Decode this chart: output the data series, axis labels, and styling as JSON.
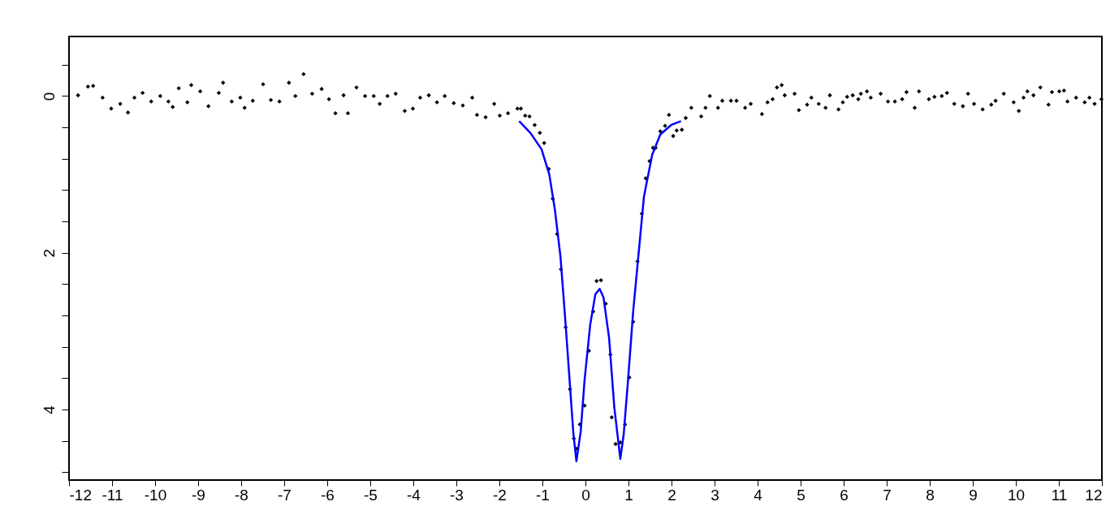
{
  "chart_data": {
    "type": "scatter",
    "xlim": [
      -12,
      12
    ],
    "ylim": [
      4.9,
      -0.76
    ],
    "xticks": [
      -12,
      -11,
      -10,
      -9,
      -8,
      -7,
      -6,
      -5,
      -4,
      -3,
      -2,
      -1,
      0,
      1,
      2,
      3,
      4,
      5,
      6,
      7,
      8,
      9,
      10,
      11,
      12
    ],
    "yticks": [
      {
        "value": -0.4,
        "label": null
      },
      0,
      {
        "value": 0.4,
        "label": null
      },
      {
        "value": 0.8,
        "label": null
      },
      {
        "value": 1.2,
        "label": null
      },
      {
        "value": 1.6,
        "label": null
      },
      2,
      {
        "value": 2.4,
        "label": null
      },
      {
        "value": 2.8,
        "label": null
      },
      {
        "value": 3.2,
        "label": null
      },
      {
        "value": 3.6,
        "label": null
      },
      4,
      {
        "value": 4.4,
        "label": null
      },
      {
        "value": 4.8,
        "label": null
      }
    ],
    "grid": false,
    "series": [
      {
        "marker": "diamond",
        "color": "#000000",
        "x": [
          -11.79,
          -11.56,
          -11.44,
          -11.22,
          -11.02,
          -10.81,
          -10.63,
          -10.48,
          -10.29,
          -10.09,
          -9.88,
          -9.69,
          -9.59,
          -9.45,
          -9.25,
          -9.16,
          -8.95,
          -8.76,
          -8.52,
          -8.42,
          -8.22,
          -8.02,
          -7.92,
          -7.73,
          -7.49,
          -7.31,
          -7.11,
          -6.89,
          -6.74,
          -6.55,
          -6.35,
          -6.13,
          -5.96,
          -5.81,
          -5.62,
          -5.52,
          -5.32,
          -5.12,
          -4.92,
          -4.78,
          -4.6,
          -4.41,
          -4.2,
          -4.01,
          -3.84,
          -3.64,
          -3.45,
          -3.27,
          -3.06,
          -2.85,
          -2.63,
          -2.52,
          -2.32,
          -2.12,
          -1.99,
          -1.8,
          -1.58,
          -1.5,
          -1.4,
          -1.3,
          -1.18,
          -1.06,
          -0.96,
          -0.85,
          -0.76,
          -0.66,
          -0.57,
          -0.46,
          -0.36,
          -0.27,
          -0.21,
          -0.13,
          -0.02,
          0.08,
          0.18,
          0.26,
          0.36,
          0.47,
          0.58,
          0.61,
          0.7,
          0.81,
          0.92,
          1.02,
          1.11,
          1.21,
          1.31,
          1.4,
          1.49,
          1.57,
          1.63,
          1.74,
          1.85,
          1.94,
          2.04,
          2.12,
          2.24,
          2.33,
          2.46,
          2.69,
          2.79,
          2.89,
          3.08,
          3.18,
          3.38,
          3.51,
          3.71,
          3.84,
          4.1,
          4.23,
          4.35,
          4.45,
          4.56,
          4.63,
          4.86,
          4.96,
          5.15,
          5.25,
          5.42,
          5.58,
          5.68,
          5.88,
          5.98,
          6.08,
          6.21,
          6.34,
          6.4,
          6.54,
          6.63,
          6.86,
          7.03,
          7.19,
          7.36,
          7.46,
          7.65,
          7.75,
          7.98,
          8.11,
          8.28,
          8.4,
          8.57,
          8.77,
          8.89,
          9.03,
          9.23,
          9.43,
          9.53,
          9.72,
          9.95,
          10.07,
          10.18,
          10.27,
          10.41,
          10.57,
          10.76,
          10.84,
          11.01,
          11.12,
          11.2,
          11.4,
          11.6,
          11.71,
          11.83,
          11.99
        ],
        "values": [
          -0.01,
          -0.12,
          -0.13,
          0.02,
          0.16,
          0.1,
          0.21,
          0.02,
          -0.04,
          0.07,
          0.0,
          0.07,
          0.14,
          -0.1,
          0.08,
          -0.14,
          -0.06,
          0.13,
          -0.04,
          -0.17,
          0.07,
          0.02,
          0.15,
          0.06,
          -0.15,
          0.05,
          0.07,
          -0.17,
          0.0,
          -0.28,
          -0.03,
          -0.09,
          0.04,
          0.22,
          -0.01,
          0.22,
          -0.11,
          0.0,
          0.0,
          0.1,
          0.0,
          -0.03,
          0.19,
          0.16,
          0.02,
          -0.01,
          0.08,
          0.0,
          0.09,
          0.12,
          0.02,
          0.24,
          0.27,
          0.1,
          0.25,
          0.22,
          0.16,
          0.16,
          0.25,
          0.26,
          0.37,
          0.47,
          0.6,
          0.93,
          1.31,
          1.76,
          2.21,
          2.95,
          3.74,
          4.37,
          4.5,
          4.19,
          3.95,
          3.25,
          2.75,
          2.36,
          2.35,
          2.65,
          3.3,
          4.1,
          4.44,
          4.42,
          4.19,
          3.59,
          2.88,
          2.11,
          1.5,
          1.05,
          0.83,
          0.66,
          0.66,
          0.45,
          0.38,
          0.24,
          0.51,
          0.44,
          0.43,
          0.28,
          0.15,
          0.26,
          0.15,
          0.0,
          0.15,
          0.06,
          0.06,
          0.06,
          0.15,
          0.1,
          0.23,
          0.08,
          0.04,
          -0.11,
          -0.14,
          -0.01,
          -0.03,
          0.18,
          0.11,
          0.02,
          0.1,
          0.15,
          -0.01,
          0.17,
          0.08,
          0.01,
          -0.01,
          0.04,
          -0.03,
          -0.06,
          0.02,
          -0.03,
          0.07,
          0.07,
          0.04,
          -0.05,
          0.15,
          -0.06,
          0.04,
          0.01,
          0.0,
          -0.04,
          0.1,
          0.13,
          -0.03,
          0.1,
          0.17,
          0.11,
          0.06,
          -0.03,
          0.08,
          0.19,
          0.02,
          -0.06,
          -0.01,
          -0.11,
          0.11,
          -0.05,
          -0.06,
          -0.07,
          0.07,
          0.02,
          0.08,
          0.02,
          0.1,
          0.04
        ]
      },
      {
        "type": "line",
        "color": "#0000ff",
        "line_style": "solid",
        "x": [
          -1.54,
          -1.28,
          -1.02,
          -0.84,
          -0.71,
          -0.58,
          -0.46,
          -0.36,
          -0.28,
          -0.21,
          -0.11,
          -0.02,
          0.11,
          0.23,
          0.33,
          0.42,
          0.55,
          0.67,
          0.81,
          0.89,
          0.99,
          1.11,
          1.24,
          1.36,
          1.55,
          1.74,
          1.99,
          2.22
        ],
        "values": [
          0.32,
          0.47,
          0.68,
          1.0,
          1.45,
          2.05,
          2.92,
          3.69,
          4.31,
          4.66,
          4.28,
          3.62,
          2.92,
          2.53,
          2.46,
          2.57,
          3.09,
          3.97,
          4.63,
          4.31,
          3.62,
          2.74,
          1.98,
          1.28,
          0.75,
          0.49,
          0.37,
          0.32
        ]
      }
    ]
  }
}
